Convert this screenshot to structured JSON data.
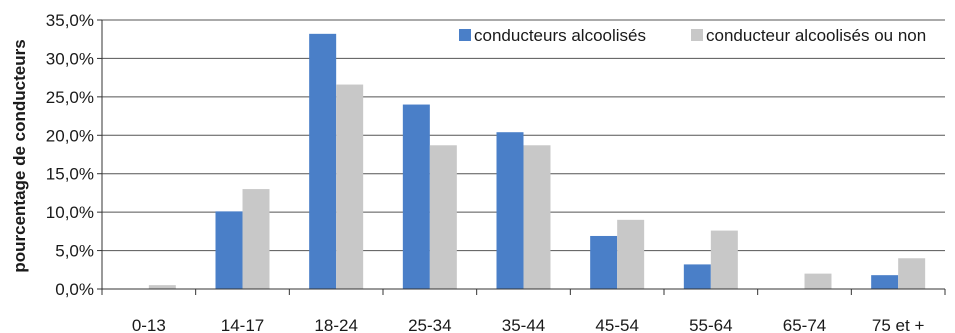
{
  "chart_data": {
    "type": "bar",
    "categories": [
      "0-13",
      "14-17",
      "18-24",
      "25-34",
      "35-44",
      "45-54",
      "55-64",
      "65-74",
      "75 et +"
    ],
    "series": [
      {
        "name": "conducteurs alcoolisés",
        "color": "#4a7fc8",
        "values": [
          0.0,
          10.1,
          33.2,
          24.0,
          20.4,
          6.9,
          3.2,
          0.0,
          1.8
        ]
      },
      {
        "name": "conducteur alcoolisés ou non",
        "color": "#c8c8c8",
        "values": [
          0.5,
          13.0,
          26.6,
          18.7,
          18.7,
          9.0,
          7.6,
          2.0,
          4.0
        ]
      }
    ],
    "title": "",
    "xlabel": "",
    "ylabel": "pourcentage de conducteurs",
    "ylim": [
      0,
      35
    ],
    "yticks": [
      "0,0%",
      "5,0%",
      "10,0%",
      "15,0%",
      "20,0%",
      "25,0%",
      "30,0%",
      "35,0%"
    ],
    "grid": true,
    "legend_position": "top-right"
  }
}
